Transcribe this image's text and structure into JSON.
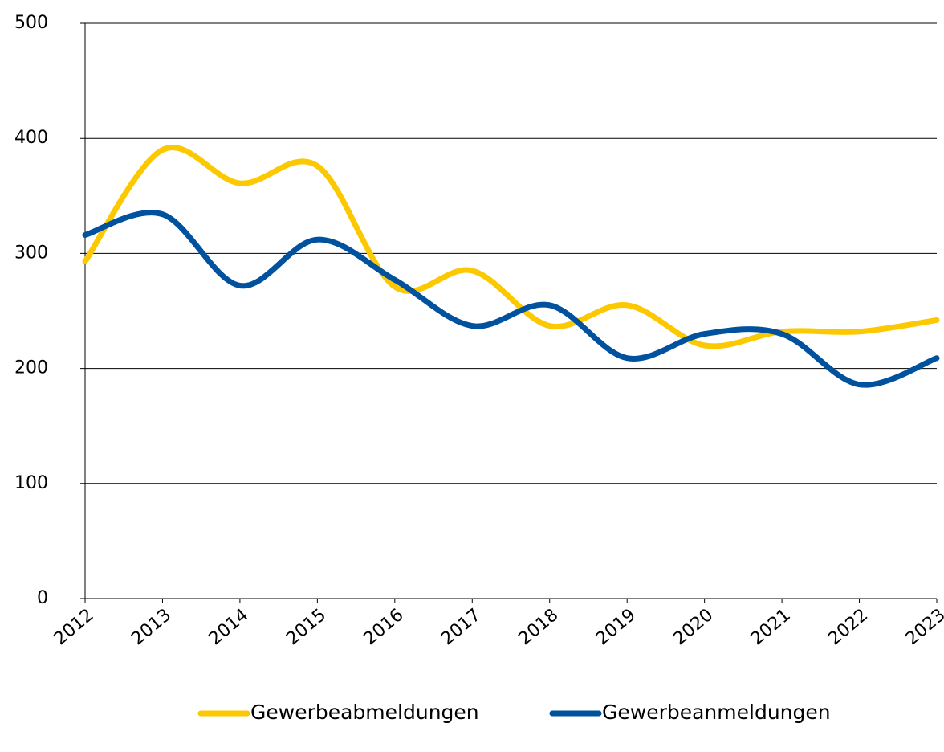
{
  "chart_data": {
    "type": "line",
    "categories": [
      "2012",
      "2013",
      "2014",
      "2015",
      "2016",
      "2017",
      "2018",
      "2019",
      "2020",
      "2021",
      "2022",
      "2023"
    ],
    "series": [
      {
        "name": "Gewerbeabmeldungen",
        "color": "#fcc800",
        "values": [
          293,
          390,
          361,
          376,
          271,
          285,
          237,
          255,
          220,
          232,
          232,
          242
        ]
      },
      {
        "name": "Gewerbeanmeldungen",
        "color": "#00519e",
        "values": [
          316,
          334,
          272,
          312,
          277,
          237,
          255,
          209,
          230,
          230,
          186,
          209
        ]
      }
    ],
    "ylim": [
      0,
      500
    ],
    "yticks": [
      0,
      100,
      200,
      300,
      400,
      500
    ],
    "grid": true,
    "smooth": true,
    "legend": "bottom"
  }
}
